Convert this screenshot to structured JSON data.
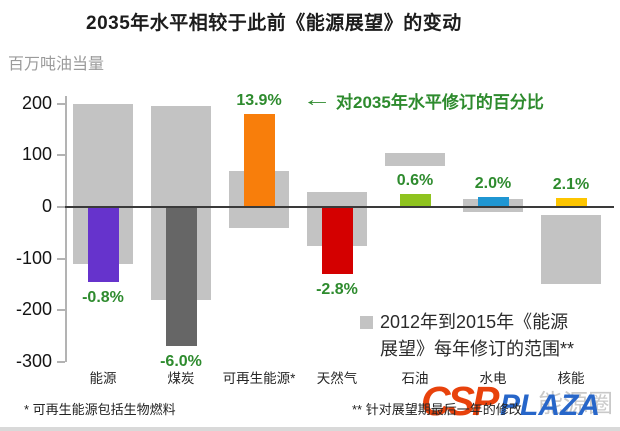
{
  "annotation": {
    "arrow": "←",
    "text": "对2035年水平修订的百分比"
  },
  "legend": {
    "label": "2012年到2015年《能源展望》每年修订的范围**",
    "swatch_color": "#c3c3c3"
  },
  "footnotes": {
    "left": "* 可再生能源包括生物燃料",
    "right": "** 针对展望期最后一年的修改"
  },
  "watermark": {
    "csp": "CSP",
    "plaza": "PLAZA",
    "faint": "能源圈",
    "csp_color": "#e8420c",
    "plaza_color": "#2766c9"
  },
  "chart_data": {
    "type": "bar",
    "title": "2035年水平相较于此前《能源展望》的变动",
    "ylabel": "百万吨油当量",
    "xlabel": "",
    "ylim": [
      -300,
      200
    ],
    "yticks": [
      200,
      100,
      0,
      -100,
      -200,
      -300
    ],
    "grid": false,
    "legend_position": "bottom-right",
    "categories": [
      "能源",
      "煤炭",
      "可再生能源*",
      "天然气",
      "石油",
      "水电",
      "核能"
    ],
    "series": [
      {
        "name": "2012年到2015年《能源展望》每年修订的范围**",
        "type": "range",
        "color": "#c3c3c3",
        "ranges_mtoe": [
          [
            -110,
            200
          ],
          [
            -180,
            195
          ],
          [
            -40,
            70
          ],
          [
            -75,
            30
          ],
          [
            80,
            105
          ],
          [
            -10,
            15
          ],
          [
            -150,
            -15
          ]
        ]
      },
      {
        "name": "对2035年水平修订的百分比",
        "type": "bar",
        "label_color": "#2e8b2e",
        "values_mtoe": [
          -145,
          -270,
          180,
          -130,
          25,
          20,
          17
        ],
        "colors": [
          "#6633cc",
          "#666666",
          "#f87e0b",
          "#d40000",
          "#8fc31f",
          "#1f96d2",
          "#fdc500"
        ],
        "pct_labels": [
          "-0.8%",
          "-6.0%",
          "13.9%",
          "-2.8%",
          "0.6%",
          "2.0%",
          "2.1%"
        ]
      }
    ]
  }
}
